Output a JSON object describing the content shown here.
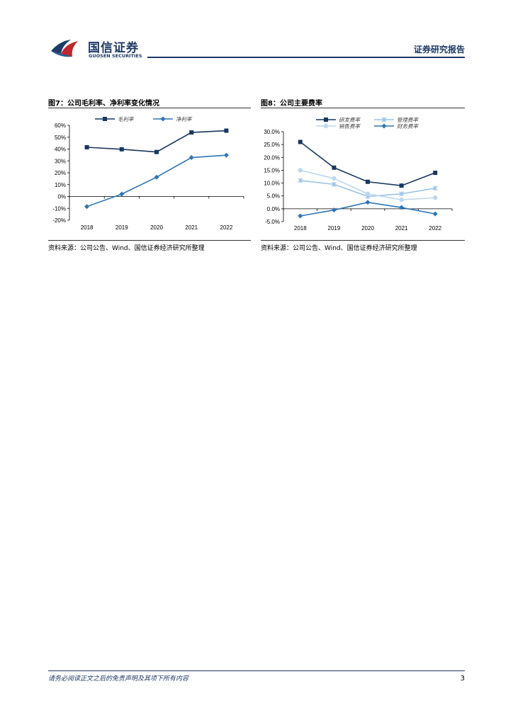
{
  "header": {
    "logo_cn": "国信证券",
    "logo_en": "GUOSEN SECURITIES",
    "report_type": "证券研究报告"
  },
  "figures": [
    {
      "title": "图7：公司毛利率、净利率变化情况",
      "source": "资料来源：公司公告、Wind、国信证券经济研究所整理"
    },
    {
      "title": "图8：公司主要费率",
      "source": "资料来源：公司公告、Wind、国信证券经济研究所整理"
    }
  ],
  "chart_data": [
    {
      "type": "line",
      "title": "图7：公司毛利率、净利率变化情况",
      "categories": [
        "2018",
        "2019",
        "2020",
        "2021",
        "2022"
      ],
      "ylim": [
        -20,
        60
      ],
      "yticks": [
        -20,
        -10,
        0,
        10,
        20,
        30,
        40,
        50,
        60
      ],
      "ytick_labels": [
        "-20%",
        "-10%",
        "0%",
        "10%",
        "20%",
        "30%",
        "40%",
        "50%",
        "60%"
      ],
      "legend": "top",
      "series": [
        {
          "name": "毛利率",
          "values": [
            41.5,
            39.8,
            37.5,
            54.0,
            55.5
          ],
          "color": "#17375e",
          "marker": "square"
        },
        {
          "name": "净利率",
          "values": [
            -8.5,
            2.0,
            16.3,
            32.8,
            34.8
          ],
          "color": "#2e75b6",
          "marker": "diamond"
        }
      ]
    },
    {
      "type": "line",
      "title": "图8：公司主要费率",
      "categories": [
        "2018",
        "2019",
        "2020",
        "2021",
        "2022"
      ],
      "ylim": [
        -5,
        30
      ],
      "yticks": [
        -5,
        0,
        5,
        10,
        15,
        20,
        25,
        30
      ],
      "ytick_labels": [
        "-5.0%",
        "0.0%",
        "5.0%",
        "10.0%",
        "15.0%",
        "20.0%",
        "25.0%",
        "30.0%"
      ],
      "legend": "top",
      "series": [
        {
          "name": "研发费率",
          "values": [
            26.0,
            16.0,
            10.5,
            9.0,
            14.0
          ],
          "color": "#17375e",
          "marker": "square"
        },
        {
          "name": "管理费率",
          "values": [
            11.0,
            9.5,
            4.8,
            5.8,
            8.0
          ],
          "color": "#9dc3e6",
          "marker": "star"
        },
        {
          "name": "销售费率",
          "values": [
            15.0,
            11.8,
            5.8,
            3.5,
            4.3
          ],
          "color": "#bdd7ee",
          "marker": "circle"
        },
        {
          "name": "财务费率",
          "values": [
            -2.8,
            -0.5,
            2.5,
            0.5,
            -2.0
          ],
          "color": "#2e75b6",
          "marker": "diamond"
        }
      ]
    }
  ],
  "footer": {
    "disclaimer": "请务必阅读正文之后的免责声明及其项下所有内容",
    "page_number": "3"
  }
}
